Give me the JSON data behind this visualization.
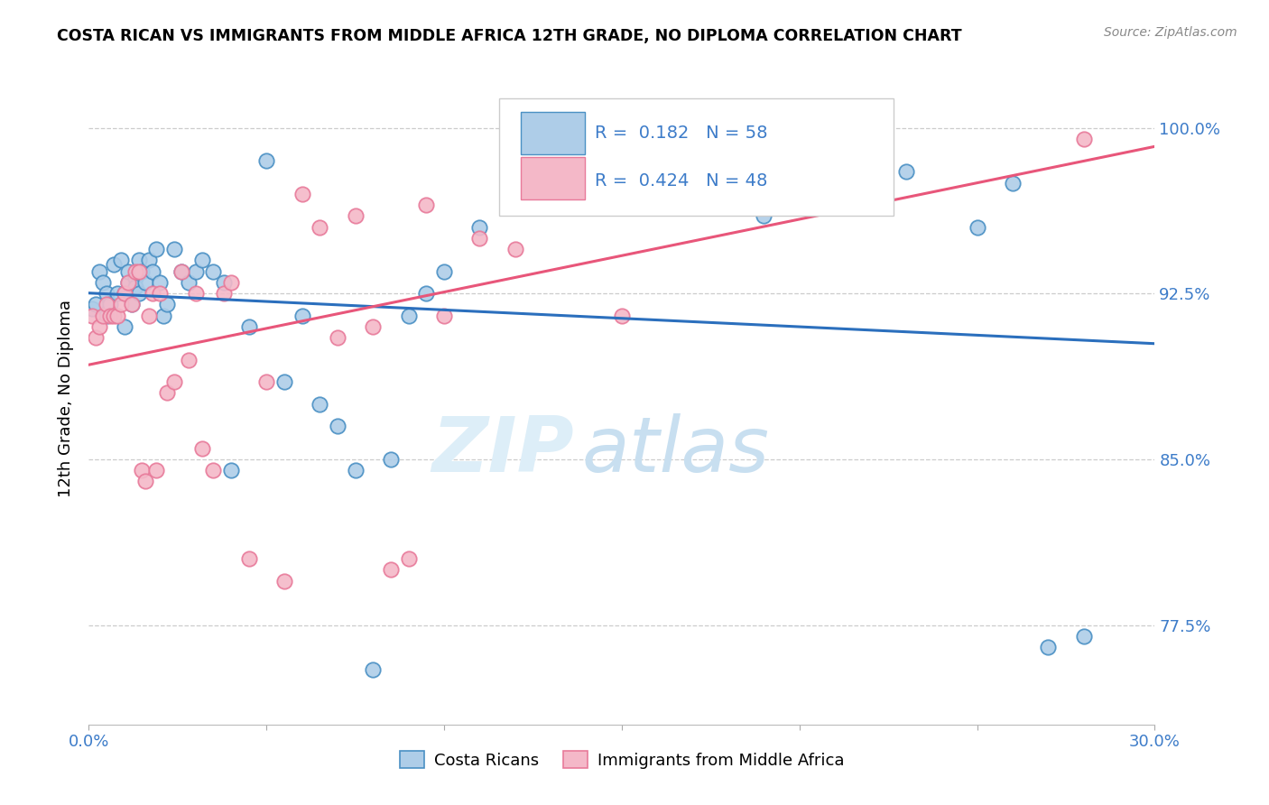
{
  "title": "COSTA RICAN VS IMMIGRANTS FROM MIDDLE AFRICA 12TH GRADE, NO DIPLOMA CORRELATION CHART",
  "source": "Source: ZipAtlas.com",
  "ylabel": "12th Grade, No Diploma",
  "legend1_label": "Costa Ricans",
  "legend2_label": "Immigrants from Middle Africa",
  "R1": "0.182",
  "N1": "58",
  "R2": "0.424",
  "N2": "48",
  "blue_fill": "#aecde8",
  "blue_edge": "#4a90c4",
  "pink_fill": "#f4b8c8",
  "pink_edge": "#e87a9a",
  "blue_line_color": "#2b6fbd",
  "pink_line_color": "#e8567a",
  "text_blue": "#3d7cc9",
  "xmin": 0.0,
  "xmax": 30.0,
  "ymin": 73.0,
  "ymax": 102.5,
  "ytick_positions": [
    77.5,
    85.0,
    92.5,
    100.0
  ],
  "xtick_positions": [
    0.0,
    5.0,
    10.0,
    15.0,
    20.0,
    25.0,
    30.0
  ],
  "blue_scatter_x": [
    0.1,
    0.2,
    0.3,
    0.4,
    0.5,
    0.5,
    0.6,
    0.7,
    0.8,
    0.9,
    1.0,
    1.0,
    1.1,
    1.1,
    1.2,
    1.3,
    1.3,
    1.4,
    1.4,
    1.5,
    1.6,
    1.7,
    1.8,
    1.9,
    2.0,
    2.1,
    2.2,
    2.4,
    2.6,
    2.8,
    3.0,
    3.2,
    3.5,
    3.8,
    4.0,
    4.5,
    5.0,
    5.5,
    6.0,
    6.5,
    7.0,
    7.5,
    8.0,
    8.5,
    9.0,
    9.5,
    10.0,
    11.0,
    13.0,
    15.0,
    17.0,
    19.0,
    21.0,
    23.0,
    25.0,
    26.0,
    27.0,
    28.0
  ],
  "blue_scatter_y": [
    91.8,
    92.0,
    93.5,
    93.0,
    92.5,
    91.5,
    92.0,
    93.8,
    92.5,
    94.0,
    91.0,
    92.5,
    93.0,
    93.5,
    92.0,
    93.2,
    92.8,
    92.5,
    94.0,
    93.5,
    93.0,
    94.0,
    93.5,
    94.5,
    93.0,
    91.5,
    92.0,
    94.5,
    93.5,
    93.0,
    93.5,
    94.0,
    93.5,
    93.0,
    84.5,
    91.0,
    98.5,
    88.5,
    91.5,
    87.5,
    86.5,
    84.5,
    75.5,
    85.0,
    91.5,
    92.5,
    93.5,
    95.5,
    96.5,
    97.0,
    100.5,
    96.0,
    96.5,
    98.0,
    95.5,
    97.5,
    76.5,
    77.0
  ],
  "pink_scatter_x": [
    0.1,
    0.2,
    0.3,
    0.4,
    0.5,
    0.6,
    0.7,
    0.8,
    0.9,
    1.0,
    1.1,
    1.2,
    1.3,
    1.4,
    1.5,
    1.6,
    1.7,
    1.8,
    1.9,
    2.0,
    2.2,
    2.4,
    2.6,
    2.8,
    3.0,
    3.2,
    3.5,
    3.8,
    4.0,
    4.5,
    5.0,
    5.5,
    6.0,
    6.5,
    7.0,
    7.5,
    8.0,
    8.5,
    9.0,
    9.5,
    10.0,
    11.0,
    12.0,
    13.0,
    15.0,
    17.0,
    20.0,
    28.0
  ],
  "pink_scatter_y": [
    91.5,
    90.5,
    91.0,
    91.5,
    92.0,
    91.5,
    91.5,
    91.5,
    92.0,
    92.5,
    93.0,
    92.0,
    93.5,
    93.5,
    84.5,
    84.0,
    91.5,
    92.5,
    84.5,
    92.5,
    88.0,
    88.5,
    93.5,
    89.5,
    92.5,
    85.5,
    84.5,
    92.5,
    93.0,
    80.5,
    88.5,
    79.5,
    97.0,
    95.5,
    90.5,
    96.0,
    91.0,
    80.0,
    80.5,
    96.5,
    91.5,
    95.0,
    94.5,
    97.5,
    91.5,
    98.0,
    100.5,
    99.5
  ]
}
